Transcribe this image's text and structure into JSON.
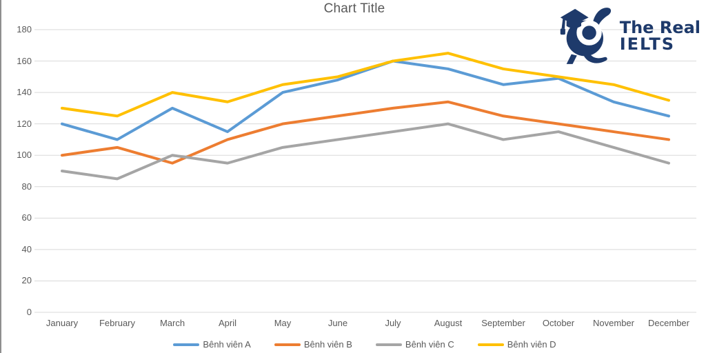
{
  "chart_data": {
    "type": "line",
    "title": "Chart Title",
    "categories": [
      "January",
      "February",
      "March",
      "April",
      "May",
      "June",
      "July",
      "August",
      "September",
      "October",
      "November",
      "December"
    ],
    "series": [
      {
        "name": "Bênh viên A",
        "color": "#5B9BD5",
        "values": [
          120,
          110,
          130,
          115,
          140,
          148,
          160,
          155,
          145,
          149,
          134,
          125
        ]
      },
      {
        "name": "Bênh viên B",
        "color": "#ED7D31",
        "values": [
          100,
          105,
          95,
          110,
          120,
          125,
          130,
          134,
          125,
          120,
          115,
          110
        ]
      },
      {
        "name": "Bênh viên C",
        "color": "#A5A5A5",
        "values": [
          90,
          85,
          100,
          95,
          105,
          110,
          115,
          120,
          110,
          115,
          105,
          95
        ]
      },
      {
        "name": "Bênh viên D",
        "color": "#FFC000",
        "values": [
          130,
          125,
          140,
          134,
          145,
          150,
          160,
          165,
          155,
          150,
          145,
          135
        ]
      }
    ],
    "y_axis": {
      "min": 0,
      "max": 180,
      "step": 20,
      "ticks": [
        0,
        20,
        40,
        60,
        80,
        100,
        120,
        140,
        160,
        180
      ]
    },
    "xlabel": "",
    "ylabel": "",
    "grid": true,
    "legend_position": "bottom"
  },
  "logo": {
    "line1": "The Real",
    "line2": "IELTS",
    "color": "#1E3A6B",
    "mascot": "rabbit-graduate-icon"
  },
  "colors": {
    "grid_line": "#D9D9D9",
    "axis_text": "#595959",
    "title_text": "#595959",
    "screenshot_edge": "#8f8f8f"
  }
}
